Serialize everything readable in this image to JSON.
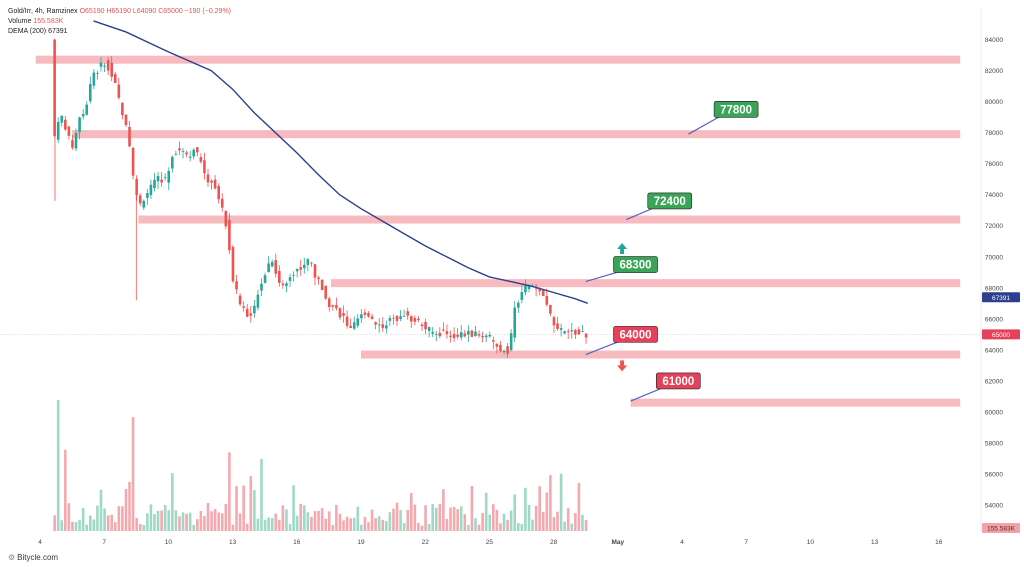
{
  "legend": {
    "symbol_line": "Gold/Irr, 4h, Ramzinex",
    "ohlc": "O65190 H65190 L64090 C65000 −190 (−0.29%)",
    "volume_label": "Volume",
    "volume_value": "155.583K",
    "dema_label": "DEMA (200)",
    "dema_value": "67391"
  },
  "footer": {
    "brand": "Bitycle.com"
  },
  "chart_data": {
    "type": "candlestick",
    "ylim": [
      52200,
      85000
    ],
    "y_ticks": [
      54000,
      56000,
      58000,
      60000,
      62000,
      64000,
      66000,
      68000,
      70000,
      72000,
      74000,
      76000,
      78000,
      80000,
      82000,
      84000
    ],
    "x_ticks": [
      {
        "label": "4",
        "day": 4
      },
      {
        "label": "7",
        "day": 7
      },
      {
        "label": "10",
        "day": 10
      },
      {
        "label": "13",
        "day": 13
      },
      {
        "label": "16",
        "day": 16
      },
      {
        "label": "19",
        "day": 19
      },
      {
        "label": "22",
        "day": 22
      },
      {
        "label": "25",
        "day": 25
      },
      {
        "label": "28",
        "day": 28
      },
      {
        "label": "May",
        "day": 31
      },
      {
        "label": "4",
        "day": 34
      },
      {
        "label": "7",
        "day": 37
      },
      {
        "label": "10",
        "day": 40
      },
      {
        "label": "13",
        "day": 43
      },
      {
        "label": "16",
        "day": 46
      }
    ],
    "price_path": [
      [
        4.6,
        84000
      ],
      [
        4.8,
        76500
      ],
      [
        5.0,
        79500
      ],
      [
        5.3,
        78000
      ],
      [
        5.6,
        77000
      ],
      [
        5.9,
        79000
      ],
      [
        6.2,
        79500
      ],
      [
        6.5,
        81500
      ],
      [
        6.9,
        82300
      ],
      [
        7.2,
        82500
      ],
      [
        7.6,
        81000
      ],
      [
        7.9,
        79500
      ],
      [
        8.2,
        78000
      ],
      [
        8.5,
        74500
      ],
      [
        8.7,
        73200
      ],
      [
        9.0,
        74000
      ],
      [
        9.3,
        74500
      ],
      [
        9.6,
        75000
      ],
      [
        10.0,
        75000
      ],
      [
        10.3,
        76800
      ],
      [
        10.7,
        77000
      ],
      [
        11.0,
        76500
      ],
      [
        11.3,
        77000
      ],
      [
        11.6,
        76000
      ],
      [
        11.9,
        75000
      ],
      [
        12.2,
        74800
      ],
      [
        12.5,
        73500
      ],
      [
        12.8,
        72000
      ],
      [
        13.1,
        68500
      ],
      [
        13.4,
        67000
      ],
      [
        13.7,
        66500
      ],
      [
        14.0,
        66000
      ],
      [
        14.3,
        68000
      ],
      [
        14.6,
        69000
      ],
      [
        14.9,
        70000
      ],
      [
        15.2,
        68500
      ],
      [
        15.5,
        68000
      ],
      [
        15.8,
        69000
      ],
      [
        16.1,
        69200
      ],
      [
        16.4,
        69500
      ],
      [
        16.7,
        69800
      ],
      [
        17.0,
        68500
      ],
      [
        17.3,
        68000
      ],
      [
        17.6,
        67000
      ],
      [
        18.0,
        66500
      ],
      [
        18.3,
        66000
      ],
      [
        18.6,
        65200
      ],
      [
        19.0,
        66000
      ],
      [
        19.3,
        66500
      ],
      [
        19.6,
        66000
      ],
      [
        20.0,
        65500
      ],
      [
        20.3,
        65800
      ],
      [
        20.7,
        66000
      ],
      [
        21.0,
        66500
      ],
      [
        21.3,
        66000
      ],
      [
        21.6,
        66000
      ],
      [
        22.0,
        65500
      ],
      [
        22.3,
        65200
      ],
      [
        22.6,
        65000
      ],
      [
        23.0,
        65200
      ],
      [
        23.3,
        64900
      ],
      [
        23.6,
        65000
      ],
      [
        24.0,
        65000
      ],
      [
        24.3,
        65000
      ],
      [
        24.6,
        64900
      ],
      [
        25.0,
        65000
      ],
      [
        25.3,
        64200
      ],
      [
        25.6,
        64000
      ],
      [
        26.0,
        64000
      ],
      [
        26.3,
        67000
      ],
      [
        26.6,
        67500
      ],
      [
        26.9,
        68300
      ],
      [
        27.2,
        67800
      ],
      [
        27.5,
        67600
      ],
      [
        27.8,
        67000
      ],
      [
        28.1,
        65500
      ],
      [
        28.4,
        65200
      ],
      [
        28.7,
        65000
      ],
      [
        29.0,
        65200
      ],
      [
        29.3,
        65000
      ],
      [
        29.6,
        65000
      ]
    ],
    "series": [
      {
        "name": "DEMA (200)",
        "points": [
          [
            6.5,
            85200
          ],
          [
            8,
            84500
          ],
          [
            10,
            83200
          ],
          [
            12,
            82000
          ],
          [
            13,
            80800
          ],
          [
            14,
            79300
          ],
          [
            15,
            78000
          ],
          [
            16,
            76700
          ],
          [
            17,
            75300
          ],
          [
            18,
            74000
          ],
          [
            19,
            73100
          ],
          [
            20,
            72300
          ],
          [
            21,
            71500
          ],
          [
            22,
            70700
          ],
          [
            23,
            70000
          ],
          [
            24,
            69300
          ],
          [
            25,
            68700
          ],
          [
            26,
            68400
          ],
          [
            27,
            68100
          ],
          [
            28,
            67700
          ],
          [
            29,
            67300
          ],
          [
            29.6,
            67000
          ]
        ]
      }
    ],
    "volume_spikes": [
      {
        "day": 4.8,
        "volume": 100
      },
      {
        "day": 5.1,
        "volume": 62
      },
      {
        "day": 8.4,
        "volume": 87
      },
      {
        "day": 12.8,
        "volume": 60
      },
      {
        "day": 14.3,
        "volume": 55
      },
      {
        "day": 26.1,
        "volume": 28
      },
      {
        "day": 26.6,
        "volume": 33
      }
    ],
    "horizontal_zones": [
      {
        "from_day": 3.8,
        "to_day": 47,
        "price": 82700
      },
      {
        "from_day": 5.5,
        "to_day": 47,
        "price": 77900
      },
      {
        "from_day": 8.6,
        "to_day": 47,
        "price": 72400
      },
      {
        "from_day": 17.6,
        "to_day": 47,
        "price": 68300
      },
      {
        "from_day": 19.0,
        "to_day": 47,
        "price": 63700
      },
      {
        "from_day": 31.6,
        "to_day": 47,
        "price": 60600
      }
    ],
    "callouts": [
      {
        "text": "77800",
        "tone": "bull",
        "price": 77800,
        "tip_day": 34.3,
        "tip_price": 77900,
        "box_day": 35.5,
        "box_price": 79500
      },
      {
        "text": "72400",
        "tone": "bull",
        "price": 72400,
        "tip_day": 31.4,
        "tip_price": 72400,
        "box_day": 32.4,
        "box_price": 73600
      },
      {
        "text": "68300",
        "tone": "bull",
        "price": 68300,
        "tip_day": 29.5,
        "tip_price": 68400,
        "box_day": 30.8,
        "box_price": 69500
      },
      {
        "text": "64000",
        "tone": "bear",
        "price": 64000,
        "tip_day": 29.5,
        "tip_price": 63700,
        "box_day": 30.8,
        "box_price": 65000
      },
      {
        "text": "61000",
        "tone": "bear",
        "price": 61000,
        "tip_day": 31.6,
        "tip_price": 60700,
        "box_day": 32.8,
        "box_price": 62000
      }
    ],
    "arrows": [
      {
        "direction": "up",
        "day": 31.2,
        "price": 70500
      },
      {
        "direction": "down",
        "day": 31.2,
        "price": 63000
      }
    ],
    "price_labels": [
      {
        "text": "67391",
        "price": 67391,
        "kind": "dema"
      },
      {
        "text": "65000",
        "price": 65000,
        "kind": "last"
      },
      {
        "text": "155.583K",
        "price": 53000,
        "kind": "volume"
      }
    ],
    "last_price": 65000,
    "colors": {
      "bull": "#26a69a",
      "bear": "#ef5350",
      "zone": "#f6b3b8",
      "dema": "#2e3f8f",
      "bull_callout": "#3aa558",
      "bear_callout": "#e5415a",
      "volume_bull": "#9fd9c6",
      "volume_bear": "#f4a9ae"
    },
    "grid": false,
    "legend_position": "top-left"
  }
}
